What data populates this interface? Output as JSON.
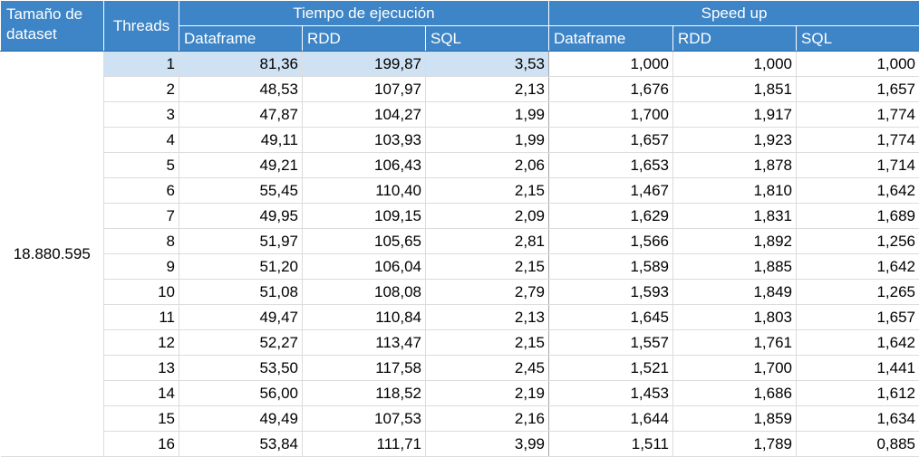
{
  "headers": {
    "dataset_size": "Tamaño de dataset",
    "threads": "Threads",
    "execution_time": "Tiempo de ejecución",
    "speed_up": "Speed up",
    "sub": [
      "Dataframe",
      "RDD",
      "SQL",
      "Dataframe",
      "RDD",
      "SQL"
    ]
  },
  "dataset_value": "18.880.595",
  "rows": [
    {
      "threads": "1",
      "time_df": "81,36",
      "time_rdd": "199,87",
      "time_sql": "3,53",
      "su_df": "1,000",
      "su_rdd": "1,000",
      "su_sql": "1,000"
    },
    {
      "threads": "2",
      "time_df": "48,53",
      "time_rdd": "107,97",
      "time_sql": "2,13",
      "su_df": "1,676",
      "su_rdd": "1,851",
      "su_sql": "1,657"
    },
    {
      "threads": "3",
      "time_df": "47,87",
      "time_rdd": "104,27",
      "time_sql": "1,99",
      "su_df": "1,700",
      "su_rdd": "1,917",
      "su_sql": "1,774"
    },
    {
      "threads": "4",
      "time_df": "49,11",
      "time_rdd": "103,93",
      "time_sql": "1,99",
      "su_df": "1,657",
      "su_rdd": "1,923",
      "su_sql": "1,774"
    },
    {
      "threads": "5",
      "time_df": "49,21",
      "time_rdd": "106,43",
      "time_sql": "2,06",
      "su_df": "1,653",
      "su_rdd": "1,878",
      "su_sql": "1,714"
    },
    {
      "threads": "6",
      "time_df": "55,45",
      "time_rdd": "110,40",
      "time_sql": "2,15",
      "su_df": "1,467",
      "su_rdd": "1,810",
      "su_sql": "1,642"
    },
    {
      "threads": "7",
      "time_df": "49,95",
      "time_rdd": "109,15",
      "time_sql": "2,09",
      "su_df": "1,629",
      "su_rdd": "1,831",
      "su_sql": "1,689"
    },
    {
      "threads": "8",
      "time_df": "51,97",
      "time_rdd": "105,65",
      "time_sql": "2,81",
      "su_df": "1,566",
      "su_rdd": "1,892",
      "su_sql": "1,256"
    },
    {
      "threads": "9",
      "time_df": "51,20",
      "time_rdd": "106,04",
      "time_sql": "2,15",
      "su_df": "1,589",
      "su_rdd": "1,885",
      "su_sql": "1,642"
    },
    {
      "threads": "10",
      "time_df": "51,08",
      "time_rdd": "108,08",
      "time_sql": "2,79",
      "su_df": "1,593",
      "su_rdd": "1,849",
      "su_sql": "1,265"
    },
    {
      "threads": "11",
      "time_df": "49,47",
      "time_rdd": "110,84",
      "time_sql": "2,13",
      "su_df": "1,645",
      "su_rdd": "1,803",
      "su_sql": "1,657"
    },
    {
      "threads": "12",
      "time_df": "52,27",
      "time_rdd": "113,47",
      "time_sql": "2,15",
      "su_df": "1,557",
      "su_rdd": "1,761",
      "su_sql": "1,642"
    },
    {
      "threads": "13",
      "time_df": "53,50",
      "time_rdd": "117,58",
      "time_sql": "2,45",
      "su_df": "1,521",
      "su_rdd": "1,700",
      "su_sql": "1,441"
    },
    {
      "threads": "14",
      "time_df": "56,00",
      "time_rdd": "118,52",
      "time_sql": "2,19",
      "su_df": "1,453",
      "su_rdd": "1,686",
      "su_sql": "1,612"
    },
    {
      "threads": "15",
      "time_df": "49,49",
      "time_rdd": "107,53",
      "time_sql": "2,16",
      "su_df": "1,644",
      "su_rdd": "1,859",
      "su_sql": "1,634"
    },
    {
      "threads": "16",
      "time_df": "53,84",
      "time_rdd": "111,71",
      "time_sql": "3,99",
      "su_df": "1,511",
      "su_rdd": "1,789",
      "su_sql": "0,885"
    }
  ],
  "colors": {
    "header_bg": "#3d85c6",
    "header_text": "#ffffff",
    "selection_bg": "#cfe2f3",
    "grid": "#dcdcdc"
  }
}
